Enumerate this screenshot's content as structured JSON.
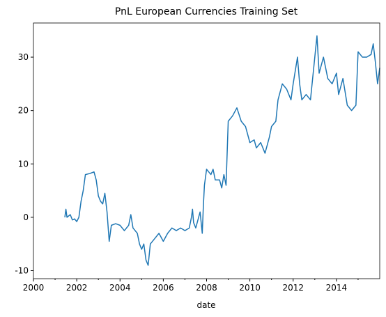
{
  "chart_data": {
    "type": "line",
    "title": "PnL European Currencies Training Set",
    "x_label": "date",
    "x": [
      2001.45,
      2001.5,
      2001.55,
      2001.7,
      2001.8,
      2001.9,
      2002.0,
      2002.1,
      2002.2,
      2002.3,
      2002.4,
      2002.6,
      2002.8,
      2002.9,
      2003.0,
      2003.1,
      2003.2,
      2003.3,
      2003.4,
      2003.5,
      2003.6,
      2003.8,
      2004.0,
      2004.2,
      2004.4,
      2004.5,
      2004.6,
      2004.8,
      2004.9,
      2005.0,
      2005.1,
      2005.2,
      2005.3,
      2005.4,
      2005.6,
      2005.8,
      2006.0,
      2006.2,
      2006.4,
      2006.6,
      2006.8,
      2007.0,
      2007.2,
      2007.3,
      2007.35,
      2007.4,
      2007.5,
      2007.6,
      2007.7,
      2007.8,
      2007.85,
      2007.9,
      2008.0,
      2008.2,
      2008.3,
      2008.4,
      2008.6,
      2008.7,
      2008.8,
      2008.9,
      2009.0,
      2009.2,
      2009.4,
      2009.6,
      2009.8,
      2010.0,
      2010.2,
      2010.3,
      2010.5,
      2010.7,
      2010.9,
      2011.0,
      2011.2,
      2011.3,
      2011.5,
      2011.7,
      2011.9,
      2012.0,
      2012.2,
      2012.3,
      2012.4,
      2012.6,
      2012.8,
      2013.0,
      2013.1,
      2013.2,
      2013.4,
      2013.6,
      2013.8,
      2014.0,
      2014.1,
      2014.3,
      2014.5,
      2014.7,
      2014.9,
      2015.0,
      2015.2,
      2015.4,
      2015.6,
      2015.7,
      2015.8,
      2015.9,
      2016.0
    ],
    "series": [
      {
        "name": "PnL",
        "color": "#1f77b4",
        "values": [
          0,
          1.5,
          0,
          0.5,
          -0.5,
          -0.3,
          -0.8,
          0,
          3,
          5,
          8,
          8.2,
          8.5,
          7,
          4,
          3,
          2.5,
          4.5,
          1,
          -4.5,
          -1.5,
          -1.2,
          -1.5,
          -2.5,
          -1.5,
          0.5,
          -2,
          -3,
          -5,
          -6,
          -5,
          -8,
          -9,
          -5,
          -4,
          -3,
          -4.5,
          -3,
          -2,
          -2.5,
          -2,
          -2.5,
          -2,
          0,
          1.5,
          -1,
          -2,
          -0.5,
          1,
          -3,
          2,
          6,
          9,
          8,
          9,
          7,
          7,
          5.5,
          8,
          6,
          18,
          19,
          20.5,
          18,
          17,
          14,
          14.5,
          13,
          14,
          12,
          15,
          17,
          18,
          22,
          25,
          24,
          22,
          25,
          30,
          25,
          22,
          23,
          22,
          30,
          34,
          27,
          30,
          26,
          25,
          27,
          23,
          26,
          21,
          20,
          21,
          31,
          30,
          30,
          30.5,
          32.5,
          29,
          25,
          28
        ]
      }
    ],
    "xlim": [
      2000,
      2016
    ],
    "xticks": [
      2000,
      2002,
      2004,
      2006,
      2008,
      2010,
      2012,
      2014
    ],
    "xminor_ticks": [
      2001,
      2003,
      2005,
      2007,
      2009,
      2011,
      2013,
      2015
    ],
    "ylim": [
      -11.5,
      36.4
    ],
    "yticks": [
      -10,
      0,
      10,
      20,
      30
    ],
    "grid": false
  }
}
